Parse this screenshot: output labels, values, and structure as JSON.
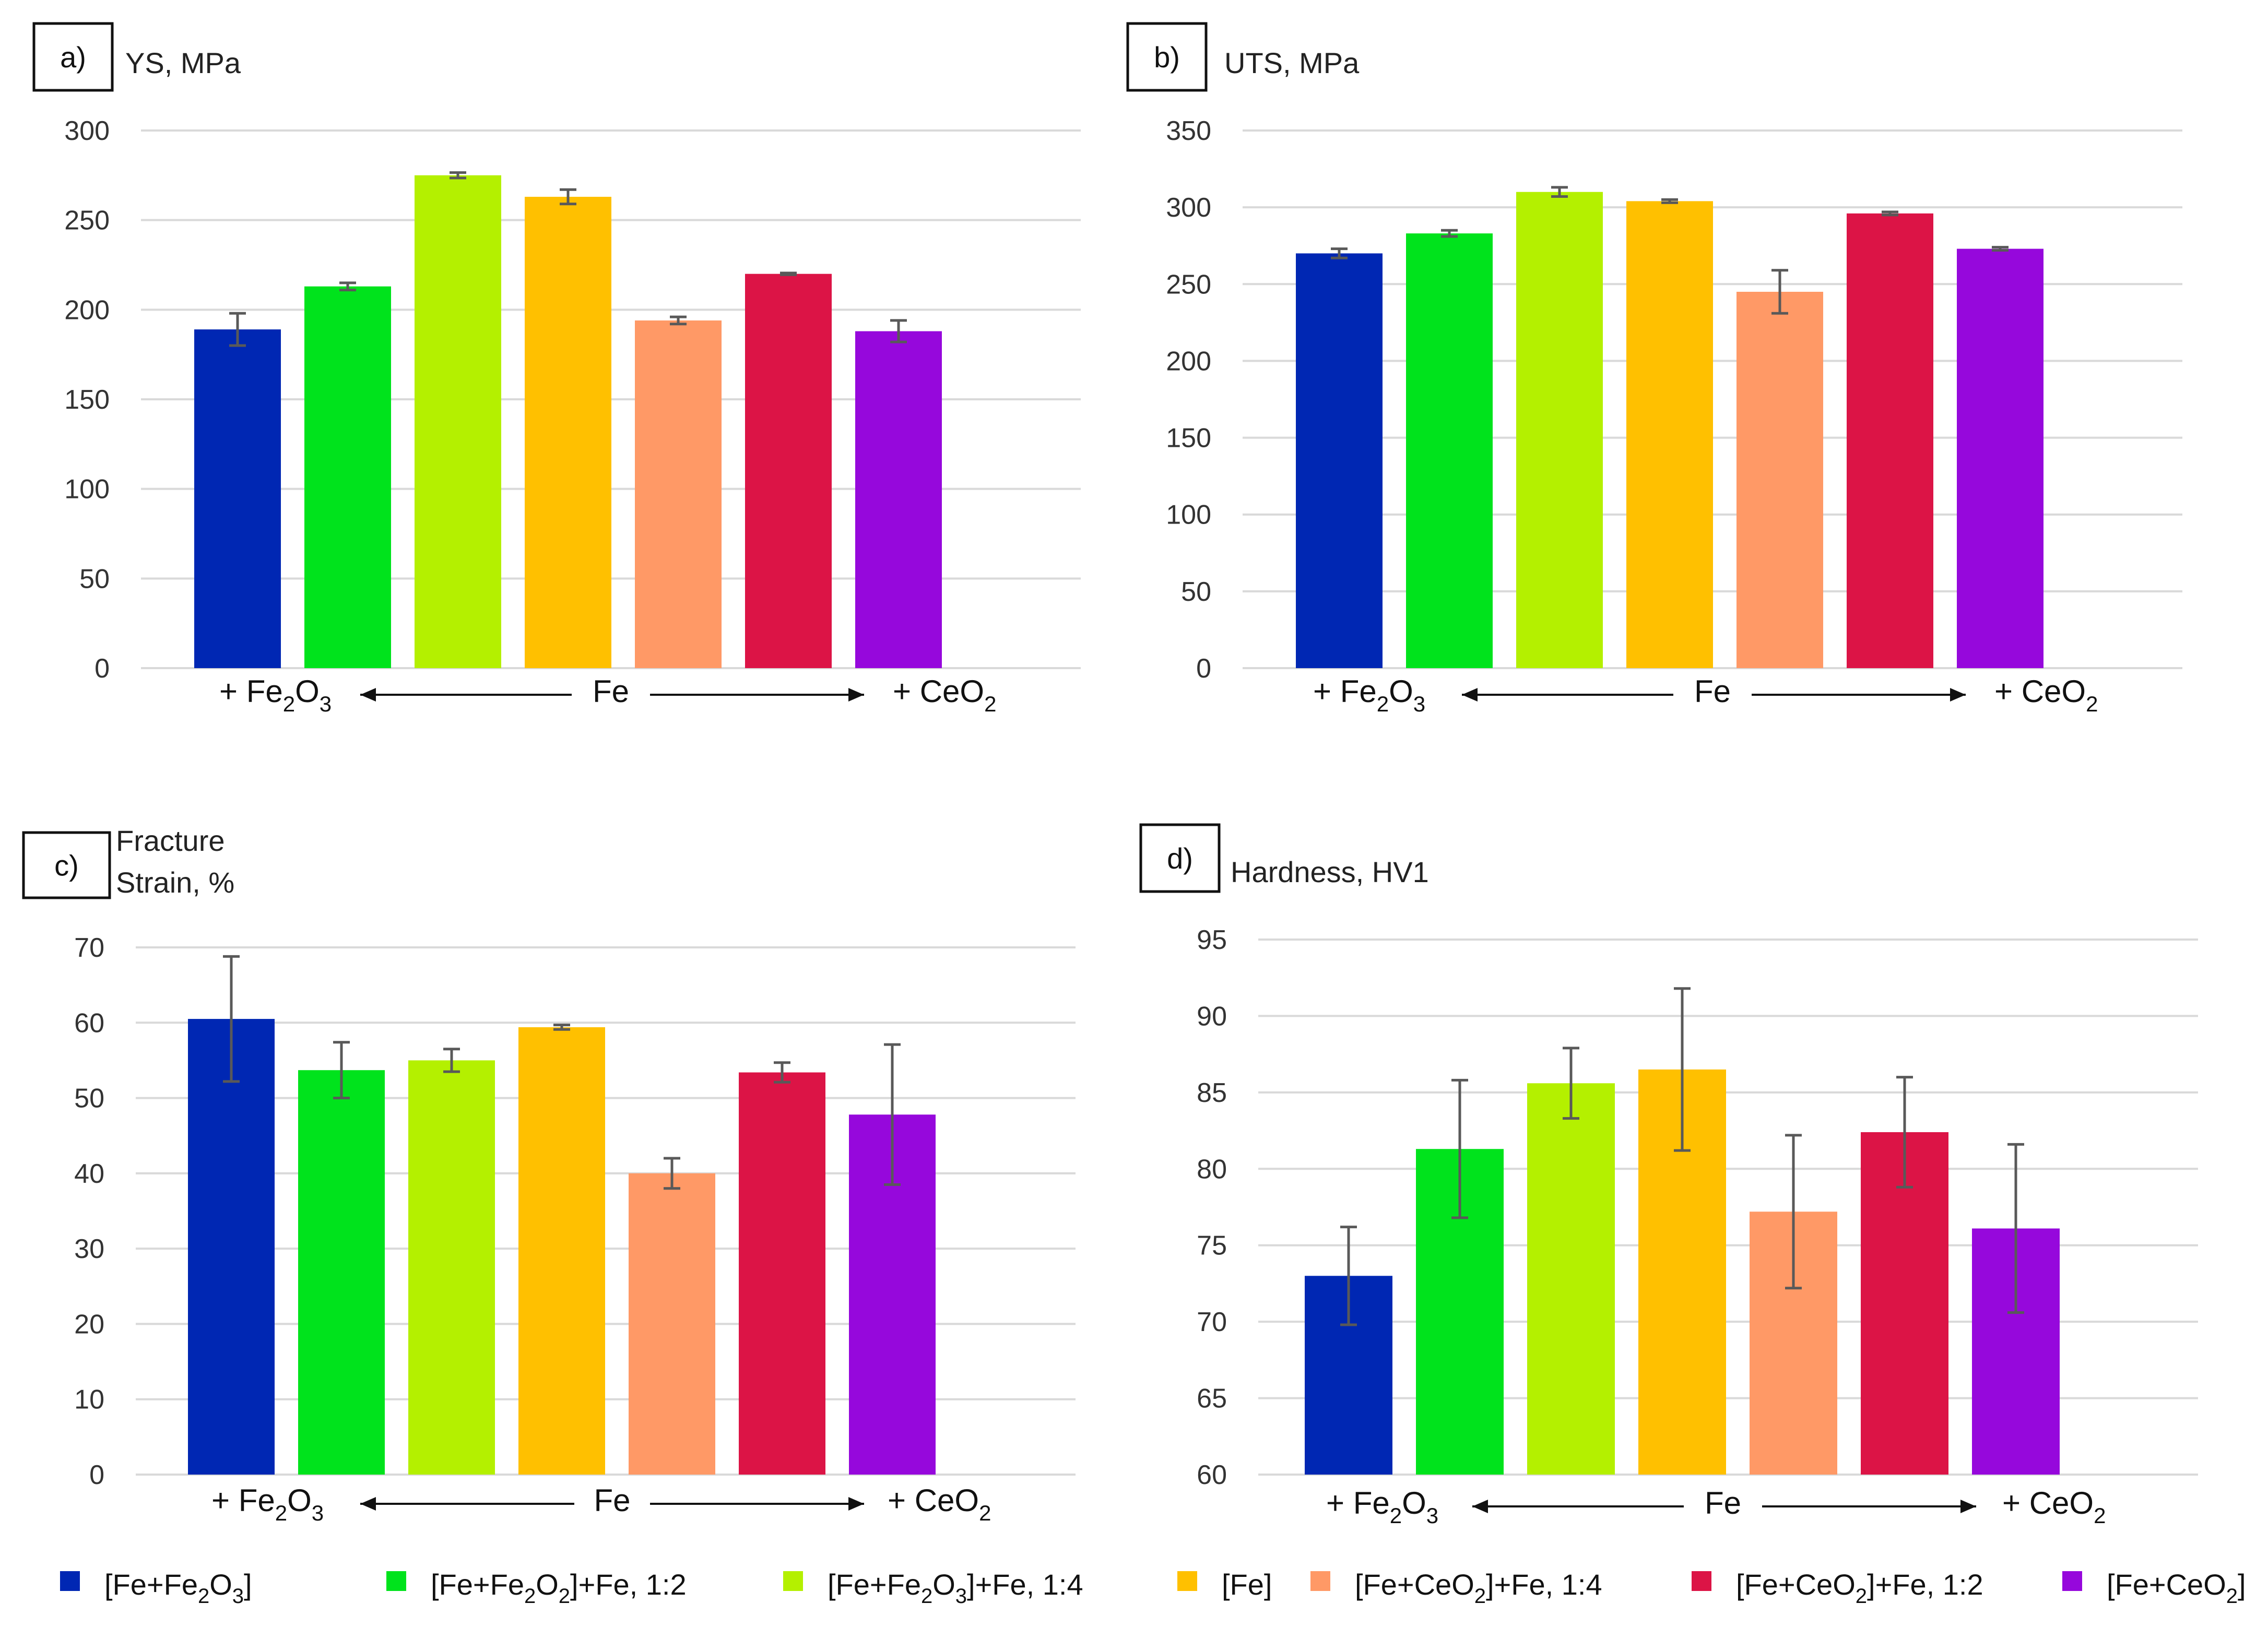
{
  "chart_data": [
    {
      "panel": "a)",
      "type": "bar",
      "ylabel": [
        "YS, MPa"
      ],
      "ylim": [
        0,
        300
      ],
      "yticks": [
        0,
        50,
        100,
        150,
        200,
        250,
        300
      ],
      "values": [
        189,
        213,
        275,
        263,
        194,
        220,
        188
      ],
      "errors": [
        9,
        2,
        1.5,
        4,
        2,
        0.5,
        6
      ],
      "x_annotation": {
        "left": [
          "+ Fe",
          "2",
          "O",
          "3"
        ],
        "center": "Fe",
        "right": [
          "+ CeO",
          "2"
        ]
      }
    },
    {
      "panel": "b)",
      "type": "bar",
      "ylabel": [
        "UTS, MPa"
      ],
      "ylim": [
        0,
        350
      ],
      "yticks": [
        0,
        50,
        100,
        150,
        200,
        250,
        300,
        350
      ],
      "values": [
        270,
        283,
        310,
        304,
        245,
        296,
        273
      ],
      "errors": [
        3,
        2,
        3,
        1,
        14,
        1,
        1
      ],
      "x_annotation": {
        "left": [
          "+ Fe",
          "2",
          "O",
          "3"
        ],
        "center": "Fe",
        "right": [
          "+ CeO",
          "2"
        ]
      }
    },
    {
      "panel": "c)",
      "type": "bar",
      "ylabel": [
        "Fracture",
        "Strain, %"
      ],
      "ylim": [
        0,
        70
      ],
      "yticks": [
        0,
        10,
        20,
        30,
        40,
        50,
        60,
        70
      ],
      "values": [
        60.5,
        53.7,
        55,
        59.4,
        40,
        53.4,
        47.8
      ],
      "errors": [
        8.3,
        3.7,
        1.5,
        0.3,
        2,
        1.3,
        9.3
      ],
      "x_annotation": {
        "left": [
          "+ Fe",
          "2",
          "O",
          "3"
        ],
        "center": "Fe",
        "right": [
          "+ CeO",
          "2"
        ]
      }
    },
    {
      "panel": "d)",
      "type": "bar",
      "ylabel": [
        "Hardness, HV1"
      ],
      "ylim": [
        60,
        95
      ],
      "yticks": [
        60,
        65,
        70,
        75,
        80,
        85,
        90,
        95
      ],
      "values": [
        73,
        81.3,
        85.6,
        86.5,
        77.2,
        82.4,
        76.1
      ],
      "errors": [
        3.2,
        4.5,
        2.3,
        5.3,
        5,
        3.6,
        5.5
      ],
      "x_annotation": {
        "left": [
          "+ Fe",
          "2",
          "O",
          "3"
        ],
        "center": "Fe",
        "right": [
          "+ CeO",
          "2"
        ]
      }
    }
  ],
  "legend": [
    {
      "parts": [
        "[Fe+Fe",
        "2",
        "O",
        "3",
        "]"
      ],
      "color": "#0027b3"
    },
    {
      "parts": [
        "[Fe+Fe",
        "2",
        "O",
        "2",
        "]+Fe, 1:2"
      ],
      "color": "#00e31c"
    },
    {
      "parts": [
        "[Fe+Fe",
        "2",
        "O",
        "3",
        "]+Fe, 1:4"
      ],
      "color": "#b4f000"
    },
    {
      "parts": [
        "[Fe]"
      ],
      "color": "#ffc000"
    },
    {
      "parts": [
        "[Fe+CeO",
        "2",
        "]+Fe, 1:4"
      ],
      "color": "#ff9966"
    },
    {
      "parts": [
        "[Fe+CeO",
        "2",
        "]+Fe, 1:2"
      ],
      "color": "#dc1446"
    },
    {
      "parts": [
        "[Fe+CeO",
        "2",
        "]"
      ],
      "color": "#9608dc"
    }
  ],
  "colors": {
    "series": [
      "#0027b3",
      "#00e31c",
      "#b4f000",
      "#ffc000",
      "#ff9966",
      "#dc1446",
      "#9608dc"
    ],
    "grid": "#d9d9d9",
    "error_bar": "#595959"
  }
}
